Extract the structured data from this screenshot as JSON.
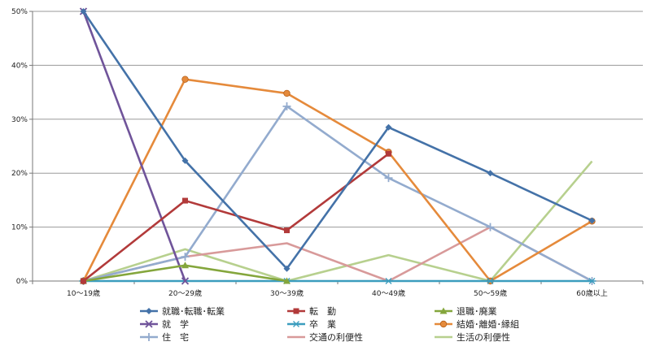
{
  "chart_data": {
    "type": "line",
    "categories": [
      "10～19歳",
      "20～29歳",
      "30～39歳",
      "40～49歳",
      "50～59歳",
      "60歳以上"
    ],
    "ylim": [
      0,
      50
    ],
    "yticks": [
      "0%",
      "10%",
      "20%",
      "30%",
      "40%",
      "50%"
    ],
    "grid": "horizontal",
    "legend_position": "bottom",
    "series": [
      {
        "name": "就職･転職･転業",
        "color": "#4472A8",
        "marker": "diamond",
        "values": [
          50,
          22.3,
          2.3,
          28.5,
          20,
          11.2
        ]
      },
      {
        "name": "転　勤",
        "color": "#B23A3A",
        "marker": "square",
        "values": [
          0,
          14.9,
          9.4,
          23.6,
          null,
          null
        ]
      },
      {
        "name": "退職･廃業",
        "color": "#84A63C",
        "marker": "triangle",
        "values": [
          0,
          2.9,
          0,
          null,
          null,
          null
        ]
      },
      {
        "name": "就　学",
        "color": "#70549A",
        "marker": "x",
        "values": [
          50,
          0,
          null,
          null,
          null,
          null
        ]
      },
      {
        "name": "卒　業",
        "color": "#3B9DBE",
        "marker": "star",
        "values": [
          0,
          0,
          0,
          0,
          0,
          0
        ]
      },
      {
        "name": "結婚･離婚･縁組",
        "color": "#E58A3B",
        "marker": "circle",
        "values": [
          0,
          37.4,
          34.8,
          23.9,
          0,
          11.1
        ]
      },
      {
        "name": "住　宅",
        "color": "#93ABCE",
        "marker": "plus",
        "values": [
          0,
          4.5,
          32.4,
          19.1,
          10,
          0
        ]
      },
      {
        "name": "交通の利便性",
        "color": "#D89A9A",
        "marker": "none",
        "values": [
          0,
          4.5,
          7,
          0,
          10,
          0
        ]
      },
      {
        "name": "生活の利便性",
        "color": "#B7D08E",
        "marker": "none",
        "values": [
          0,
          5.9,
          0,
          4.8,
          0,
          22.2
        ]
      }
    ]
  }
}
